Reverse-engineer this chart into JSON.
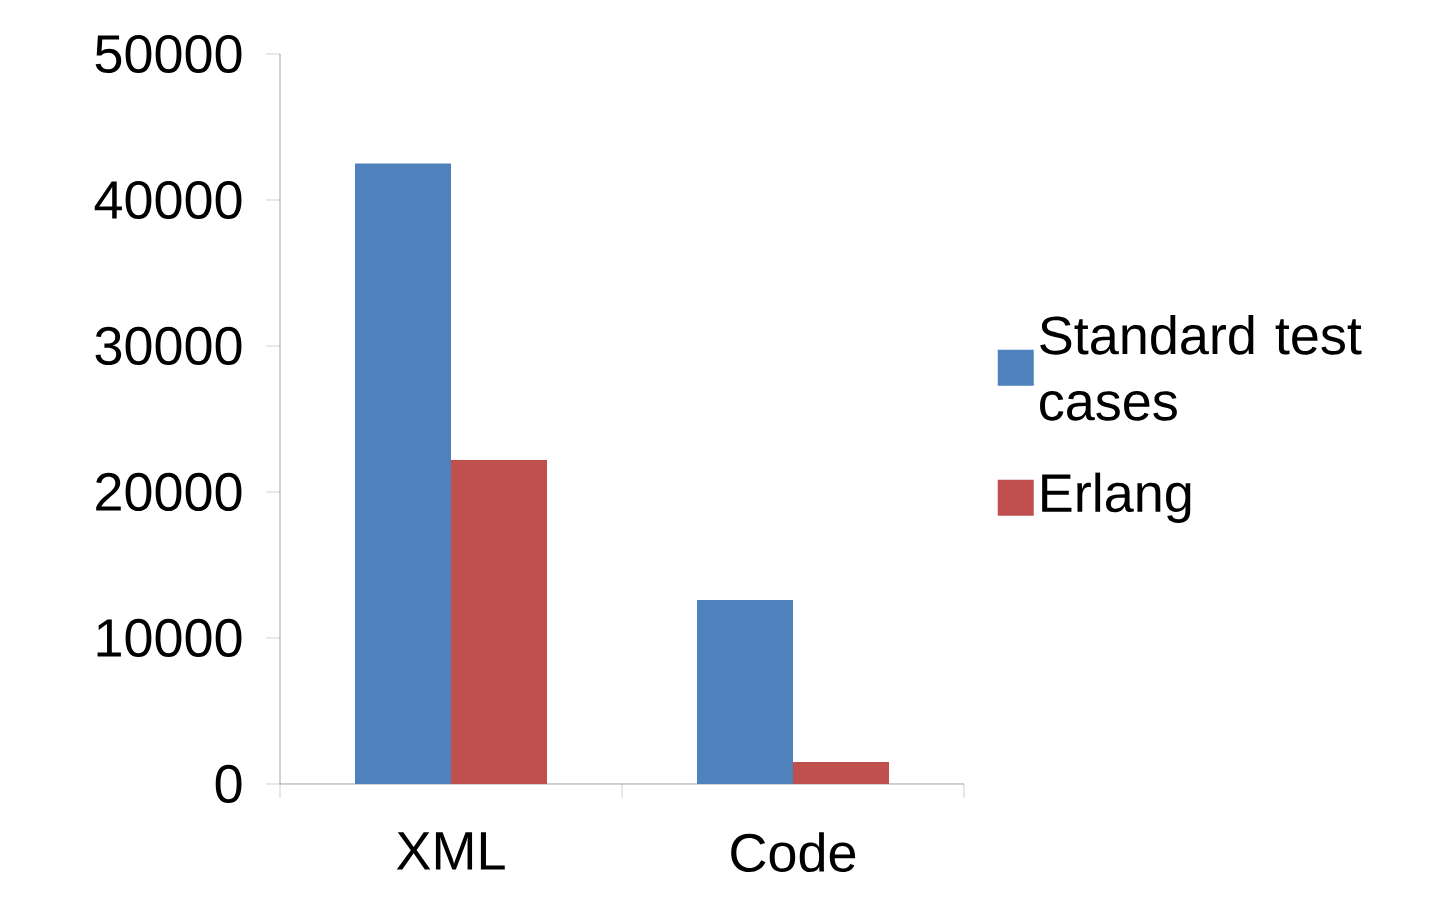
{
  "chart_data": {
    "type": "bar",
    "categories": [
      "XML",
      "Code"
    ],
    "series": [
      {
        "name": "Standard test cases",
        "color": "#4f81bd",
        "values": [
          42500,
          12600
        ]
      },
      {
        "name": "Erlang",
        "color": "#c0504d",
        "values": [
          22200,
          1500
        ]
      }
    ],
    "ylim": [
      0,
      50000
    ],
    "yticks": [
      0,
      10000,
      20000,
      30000,
      40000,
      50000
    ],
    "grid": false,
    "legend": "right"
  }
}
